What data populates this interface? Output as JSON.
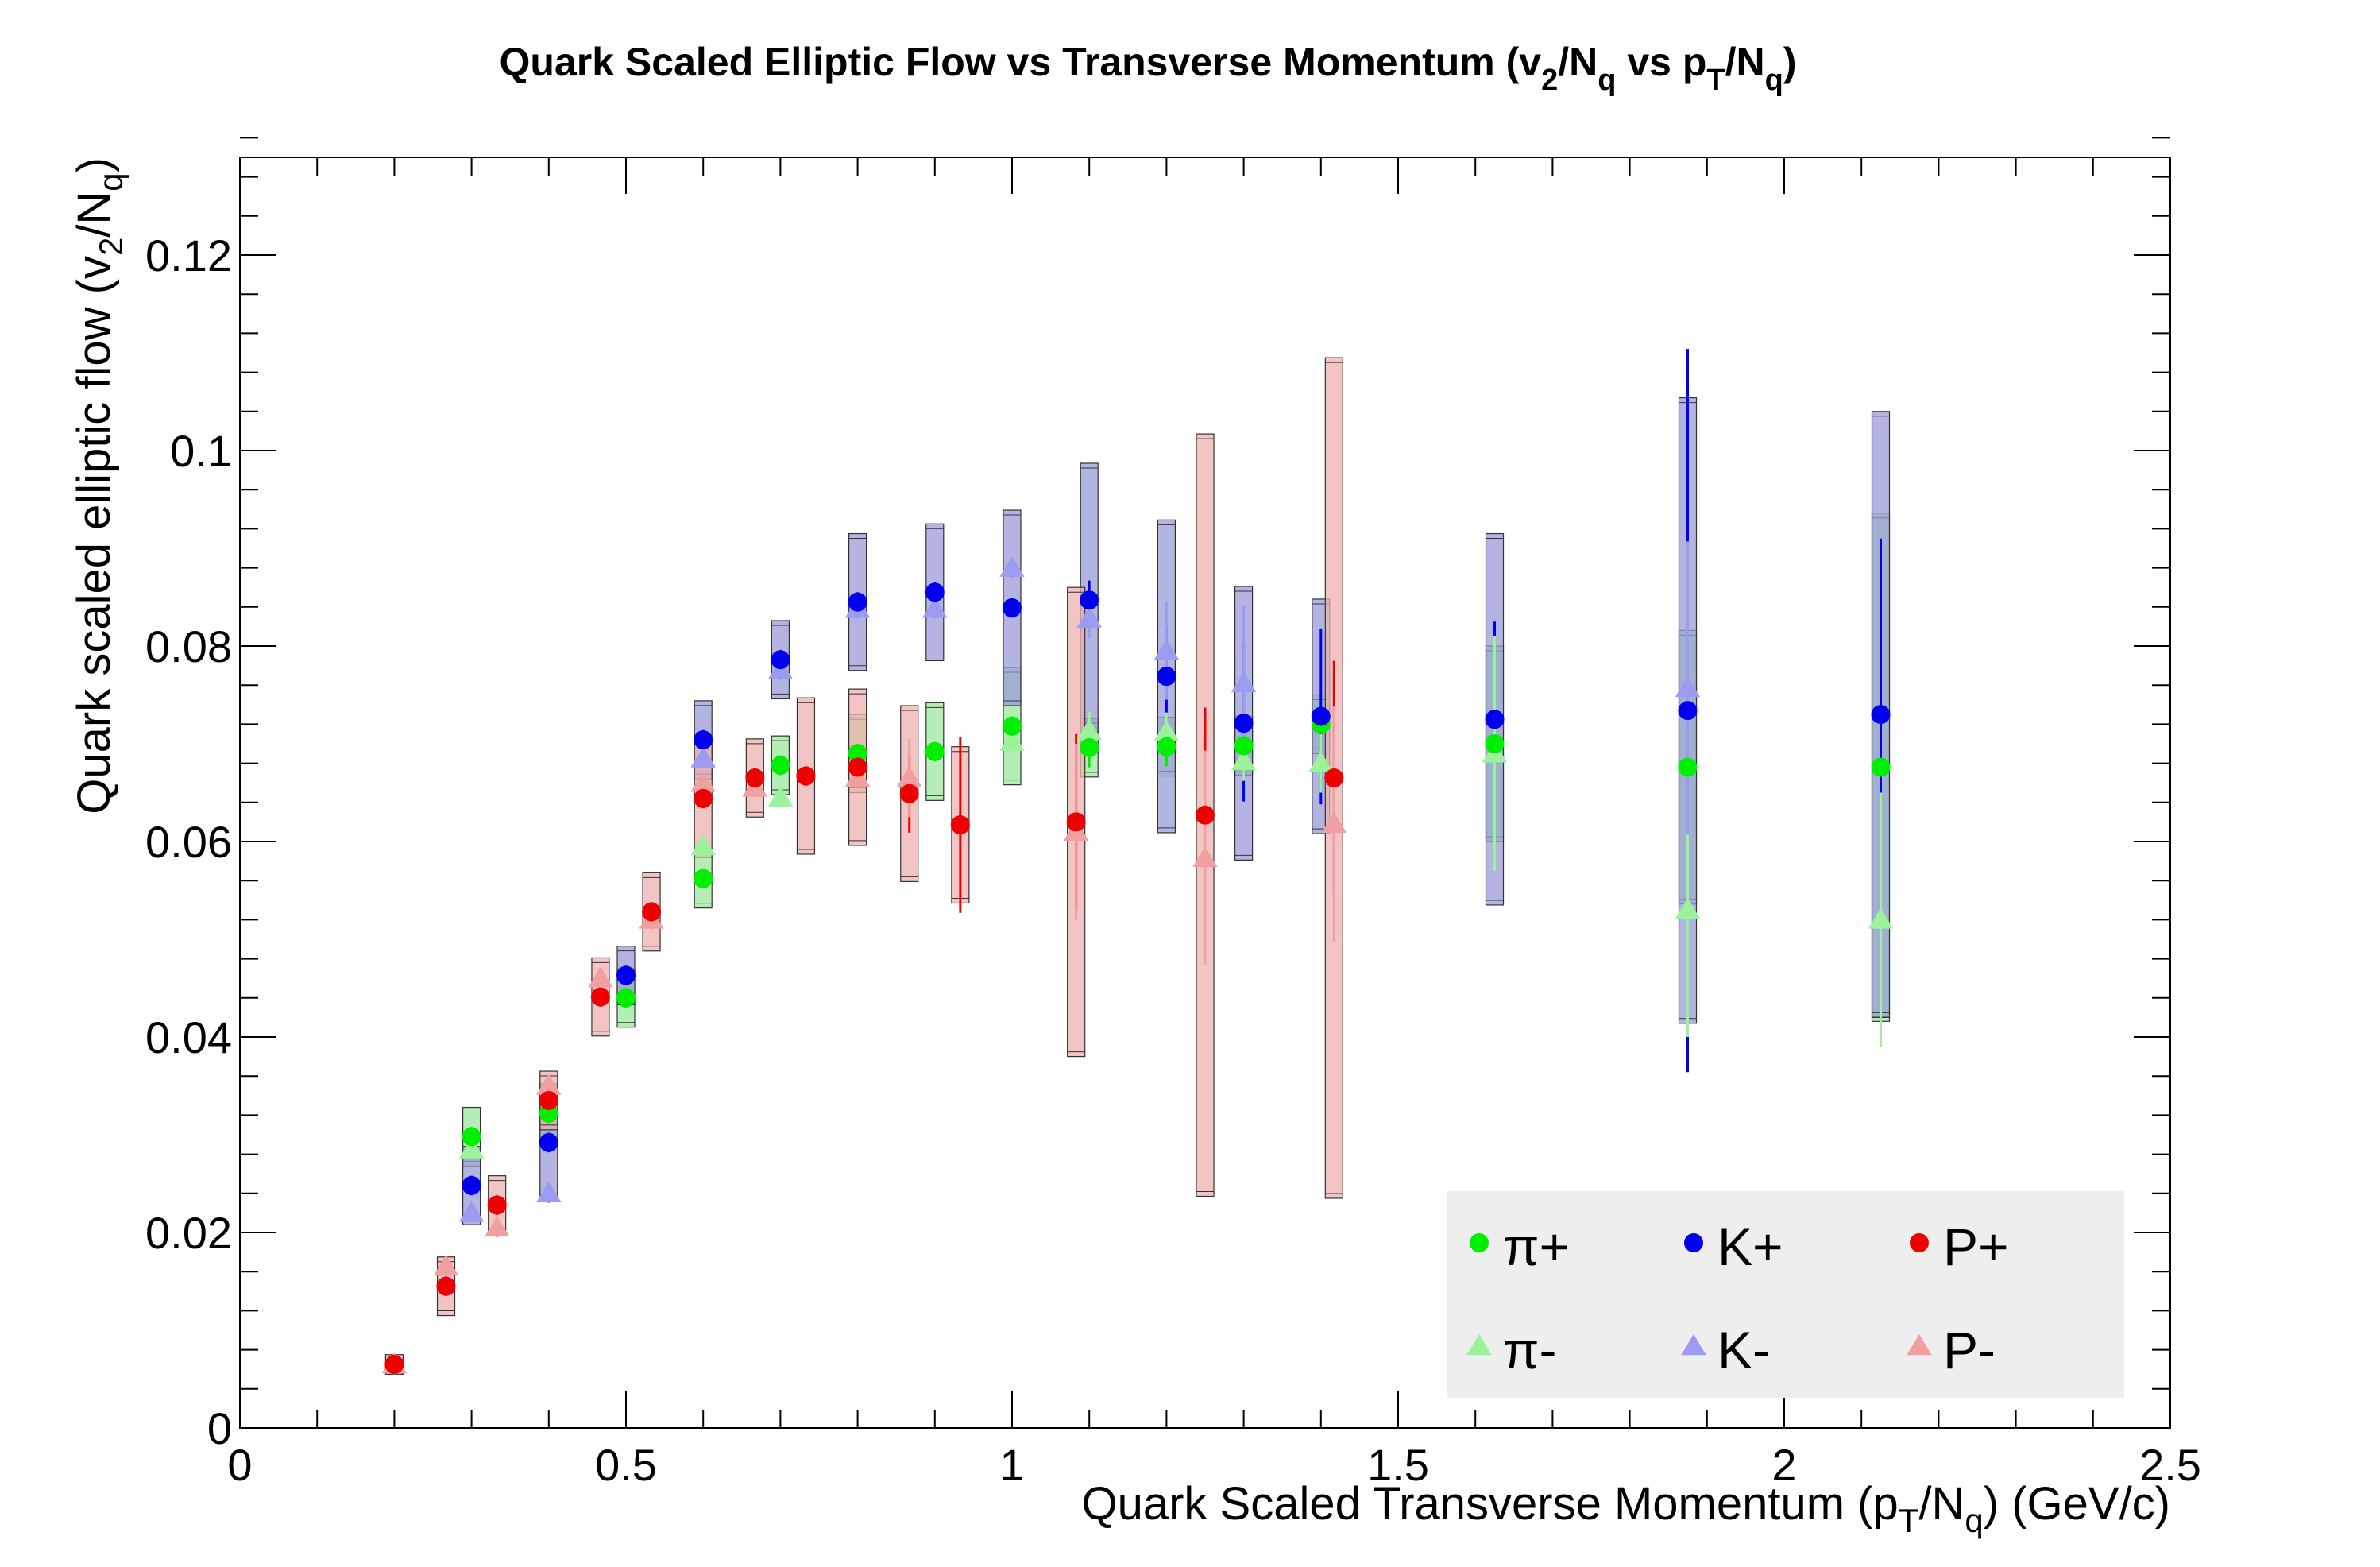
{
  "chart_data": {
    "type": "scatter",
    "title": "Quark Scaled Elliptic Flow vs Transverse Momentum (v2/Nq vs pT/Nq)",
    "title_parts": {
      "a": "Quark Scaled Elliptic Flow vs Transverse Momentum (v",
      "b": "2",
      "c": "/N",
      "d": "q",
      "e": " vs p",
      "f": "T",
      "g": "/N",
      "h": "q",
      "i": ")"
    },
    "xlabel": "Quark Scaled Transverse Momentum (pT/Nq) (GeV/c)",
    "xlabel_parts": {
      "a": "Quark Scaled Transverse Momentum (p",
      "b": "T",
      "c": "/N",
      "d": "q",
      "e": ") (GeV/c)"
    },
    "ylabel": "Quark scaled elliptic flow (v2/Nq)",
    "ylabel_parts": {
      "a": "Quark scaled elliptic flow (v",
      "b": "2",
      "c": "/N",
      "d": "q",
      "e": ")"
    },
    "xlim": [
      0,
      2.5
    ],
    "ylim": [
      0,
      0.13
    ],
    "x_ticks": [
      0,
      0.5,
      1,
      1.5,
      2,
      2.5
    ],
    "x_tick_labels": [
      "0",
      "0.5",
      "1",
      "1.5",
      "2",
      "2.5"
    ],
    "y_ticks": [
      0,
      0.02,
      0.04,
      0.06,
      0.08,
      0.1,
      0.12
    ],
    "y_tick_labels": [
      "0",
      "0.02",
      "0.04",
      "0.06",
      "0.08",
      "0.1",
      "0.12"
    ],
    "grid": false,
    "legend_position": "bottom-right",
    "series": [
      {
        "name": "π+",
        "marker": "circle",
        "color": "#00ee00",
        "box_color": "#9be89b",
        "x": [
          0.3,
          0.4,
          0.5,
          0.6,
          0.7,
          0.8,
          0.9,
          1.0,
          1.1,
          1.2,
          1.3,
          1.4,
          1.625,
          1.875,
          2.125
        ],
        "y": [
          0.0298,
          0.0322,
          0.044,
          0.0562,
          0.0678,
          0.069,
          0.0692,
          0.0718,
          0.0696,
          0.0697,
          0.0698,
          0.072,
          0.07,
          0.0676,
          0.0676
        ],
        "err": [
          0.001,
          0.001,
          0.001,
          0.001,
          0.001,
          0.001,
          0.001,
          0.001,
          0.002,
          0.002,
          0.002,
          0.003,
          0.012,
          0.013,
          0.013
        ],
        "sys": [
          0.003,
          0.003,
          0.003,
          0.003,
          0.003,
          0.004,
          0.005,
          0.006,
          0.003,
          0.003,
          0.003,
          0.003,
          0.01,
          0.014,
          0.026
        ]
      },
      {
        "name": "K+",
        "marker": "circle",
        "color": "#0000ee",
        "box_color": "#9b9bd9",
        "x": [
          0.3,
          0.4,
          0.5,
          0.6,
          0.7,
          0.8,
          0.9,
          1.0,
          1.1,
          1.2,
          1.3,
          1.4,
          1.625,
          1.875,
          2.125
        ],
        "y": [
          0.0248,
          0.0292,
          0.0463,
          0.0704,
          0.0786,
          0.0845,
          0.0855,
          0.0839,
          0.0847,
          0.0769,
          0.0721,
          0.0728,
          0.0725,
          0.0734,
          0.073
        ],
        "err": [
          0.001,
          0.001,
          0.001,
          0.001,
          0.001,
          0.001,
          0.001,
          0.001,
          0.002,
          0.005,
          0.008,
          0.009,
          0.01,
          0.037,
          0.018
        ],
        "sys": [
          0.004,
          0.006,
          0.003,
          0.004,
          0.004,
          0.007,
          0.007,
          0.01,
          0.014,
          0.016,
          0.014,
          0.012,
          0.019,
          0.032,
          0.031
        ]
      },
      {
        "name": "P+",
        "marker": "circle",
        "color": "#ee0000",
        "box_color": "#eeb0b0",
        "x": [
          0.2,
          0.267,
          0.333,
          0.4,
          0.467,
          0.533,
          0.6,
          0.667,
          0.733,
          0.8,
          0.867,
          0.933,
          1.083,
          1.25,
          1.417
        ],
        "y": [
          0.0065,
          0.0145,
          0.0228,
          0.0335,
          0.0441,
          0.0528,
          0.0644,
          0.0665,
          0.0667,
          0.0676,
          0.0649,
          0.0617,
          0.062,
          0.0627,
          0.0665
        ],
        "err": [
          0.001,
          0.001,
          0.001,
          0.001,
          0.001,
          0.001,
          0.001,
          0.001,
          0.001,
          0.002,
          0.004,
          0.009,
          0.009,
          0.011,
          0.012
        ],
        "sys": [
          0.001,
          0.003,
          0.003,
          0.003,
          0.004,
          0.004,
          0.006,
          0.004,
          0.008,
          0.008,
          0.009,
          0.008,
          0.024,
          0.039,
          0.043
        ]
      },
      {
        "name": "π-",
        "marker": "triangle",
        "color": "#9bf29b",
        "box_color": "#9be89b",
        "x": [
          0.3,
          0.6,
          0.7,
          0.8,
          1.0,
          1.1,
          1.2,
          1.3,
          1.4,
          1.625,
          1.875,
          2.125
        ],
        "y": [
          0.0285,
          0.0595,
          0.0645,
          0.0665,
          0.0702,
          0.0713,
          0.0712,
          0.0682,
          0.068,
          0.069,
          0.053,
          0.052
        ],
        "err": [
          0.001,
          0.001,
          0.001,
          0.001,
          0.001,
          0.002,
          0.002,
          0.002,
          0.003,
          0.012,
          0.013,
          0.013
        ],
        "sys": [
          0,
          0,
          0,
          0,
          0,
          0,
          0,
          0,
          0,
          0,
          0,
          0
        ]
      },
      {
        "name": "K-",
        "marker": "triangle",
        "color": "#9b9bf0",
        "box_color": "#9b9bd9",
        "x": [
          0.3,
          0.4,
          0.6,
          0.7,
          0.8,
          0.9,
          1.0,
          1.1,
          1.2,
          1.3,
          1.875
        ],
        "y": [
          0.022,
          0.024,
          0.0685,
          0.0775,
          0.0838,
          0.0838,
          0.088,
          0.0828,
          0.0795,
          0.0762,
          0.0757
        ],
        "err": [
          0.001,
          0.001,
          0.001,
          0.001,
          0.001,
          0.001,
          0.001,
          0.002,
          0.005,
          0.008,
          0.015
        ],
        "sys": [
          0,
          0,
          0,
          0,
          0,
          0,
          0,
          0,
          0,
          0,
          0
        ]
      },
      {
        "name": "P-",
        "marker": "triangle",
        "color": "#f0a0a0",
        "box_color": "#eeb0b0",
        "x": [
          0.2,
          0.267,
          0.333,
          0.4,
          0.467,
          0.533,
          0.6,
          0.667,
          0.8,
          0.867,
          1.083,
          1.25,
          1.417
        ],
        "y": [
          0.0065,
          0.0165,
          0.0205,
          0.035,
          0.046,
          0.052,
          0.066,
          0.0655,
          0.0665,
          0.0665,
          0.061,
          0.0583,
          0.0618
        ],
        "err": [
          0.001,
          0.001,
          0.001,
          0.001,
          0.001,
          0.001,
          0.001,
          0.001,
          0.001,
          0.004,
          0.009,
          0.011,
          0.012
        ],
        "sys": [
          0,
          0,
          0,
          0,
          0,
          0,
          0,
          0,
          0,
          0,
          0,
          0,
          0
        ]
      }
    ]
  },
  "legend": {
    "items": [
      "π+",
      "K+",
      "P+",
      "π-",
      "K-",
      "P-"
    ],
    "background": "#eeeeee"
  }
}
